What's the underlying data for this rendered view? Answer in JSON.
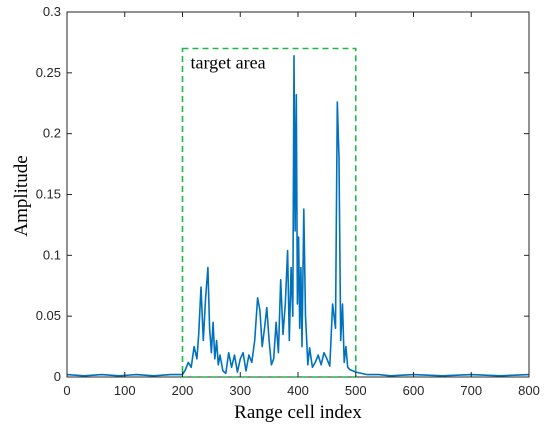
{
  "chart_data": {
    "type": "line",
    "title": "",
    "xlabel": "Range cell index",
    "ylabel": "Amplitude",
    "xlim": [
      0,
      800
    ],
    "ylim": [
      0,
      0.3
    ],
    "xticks": [
      0,
      100,
      200,
      300,
      400,
      500,
      600,
      700,
      800
    ],
    "yticks": [
      0,
      0.05,
      0.1,
      0.15,
      0.2,
      0.25,
      0.3
    ],
    "xtick_labels": [
      "0",
      "100",
      "200",
      "300",
      "400",
      "500",
      "600",
      "700",
      "800"
    ],
    "ytick_labels": [
      "0",
      "0.05",
      "0.1",
      "0.15",
      "0.2",
      "0.25",
      "0.3"
    ],
    "grid": false,
    "series": [
      {
        "color": "#0072BD",
        "x": [
          0,
          30,
          60,
          90,
          120,
          150,
          180,
          200,
          205,
          210,
          215,
          220,
          225,
          228,
          232,
          236,
          240,
          244,
          247,
          250,
          253,
          256,
          259,
          262,
          265,
          270,
          275,
          280,
          285,
          290,
          295,
          300,
          305,
          310,
          315,
          320,
          325,
          330,
          334,
          338,
          342,
          346,
          350,
          354,
          358,
          362,
          366,
          370,
          374,
          378,
          382,
          385,
          388,
          391,
          393,
          395,
          397,
          399,
          401,
          403,
          405,
          407,
          410,
          413,
          415,
          417,
          420,
          425,
          430,
          435,
          440,
          445,
          450,
          455,
          460,
          465,
          468,
          471,
          474,
          477,
          480,
          483,
          486,
          490,
          495,
          500,
          510,
          520,
          540,
          560,
          600,
          650,
          700,
          750,
          800
        ],
        "y": [
          0.002,
          0.001,
          0.002,
          0.001,
          0.002,
          0.001,
          0.002,
          0.002,
          0.006,
          0.012,
          0.008,
          0.025,
          0.015,
          0.035,
          0.074,
          0.03,
          0.065,
          0.09,
          0.04,
          0.02,
          0.045,
          0.015,
          0.03,
          0.01,
          0.018,
          0.005,
          0.003,
          0.02,
          0.008,
          0.018,
          0.004,
          0.015,
          0.02,
          0.005,
          0.018,
          0.012,
          0.03,
          0.065,
          0.055,
          0.025,
          0.04,
          0.057,
          0.03,
          0.01,
          0.015,
          0.045,
          0.02,
          0.08,
          0.035,
          0.06,
          0.104,
          0.03,
          0.09,
          0.05,
          0.264,
          0.12,
          0.232,
          0.06,
          0.115,
          0.04,
          0.09,
          0.025,
          0.138,
          0.05,
          0.03,
          0.01,
          0.024,
          0.008,
          0.012,
          0.018,
          0.01,
          0.02,
          0.015,
          0.009,
          0.06,
          0.04,
          0.226,
          0.18,
          0.03,
          0.06,
          0.012,
          0.025,
          0.008,
          0.006,
          0.005,
          0.004,
          0.003,
          0.002,
          0.002,
          0.001,
          0.002,
          0.001,
          0.002,
          0.001,
          0.002
        ]
      }
    ],
    "annotations": [
      {
        "text": "target area",
        "box": {
          "x0": 200,
          "x1": 500,
          "y0": 0,
          "y1": 0.27
        },
        "box_color": "#1EB84A",
        "box_style": "dashed"
      }
    ]
  }
}
